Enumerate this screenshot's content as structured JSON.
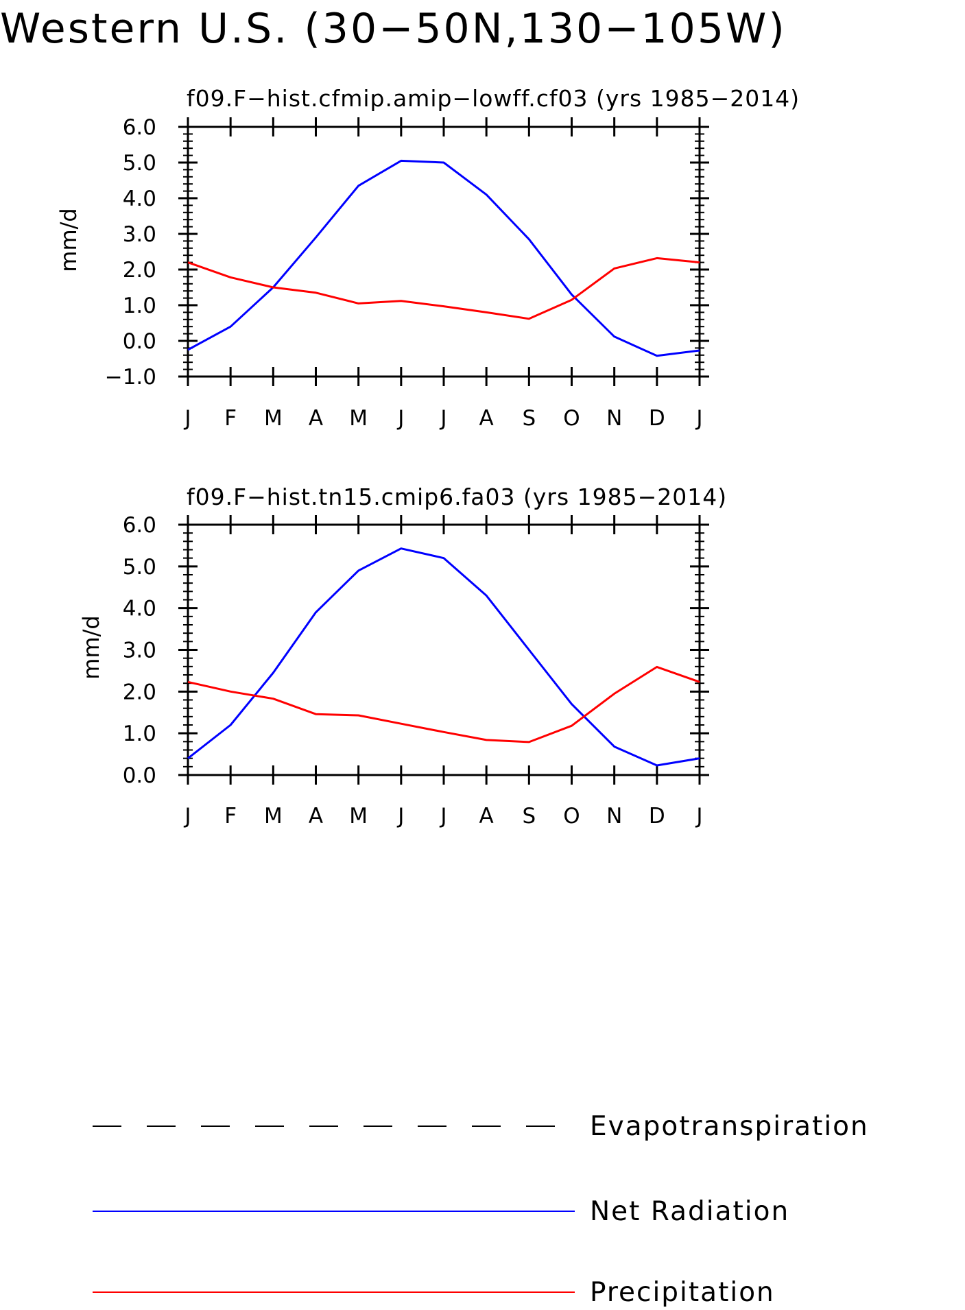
{
  "title": "Western U.S. (30−50N,130−105W)",
  "chart_data": [
    {
      "type": "line",
      "title": "f09.F−hist.cfmip.amip−lowff.cf03 (yrs 1985−2014)",
      "xlabel": "",
      "ylabel": "mm/d",
      "categories": [
        "J",
        "F",
        "M",
        "A",
        "M",
        "J",
        "J",
        "A",
        "S",
        "O",
        "N",
        "D",
        "J"
      ],
      "ylim": [
        -1.0,
        6.0
      ],
      "yticks": [
        "−1.0",
        "0.0",
        "1.0",
        "2.0",
        "3.0",
        "4.0",
        "5.0",
        "6.0"
      ],
      "grid": false,
      "series": [
        {
          "name": "Net Radiation",
          "color": "#0000ff",
          "values": [
            -0.25,
            0.4,
            1.5,
            2.9,
            4.35,
            5.05,
            5.0,
            4.1,
            2.85,
            1.3,
            0.12,
            -0.42,
            -0.27
          ]
        },
        {
          "name": "Precipitation",
          "color": "#ff0000",
          "values": [
            2.2,
            1.78,
            1.5,
            1.35,
            1.05,
            1.12,
            0.97,
            0.8,
            0.62,
            1.15,
            2.03,
            2.32,
            2.2
          ]
        }
      ]
    },
    {
      "type": "line",
      "title": "f09.F−hist.tn15.cmip6.fa03 (yrs 1985−2014)",
      "xlabel": "",
      "ylabel": "mm/d",
      "categories": [
        "J",
        "F",
        "M",
        "A",
        "M",
        "J",
        "J",
        "A",
        "S",
        "O",
        "N",
        "D",
        "J"
      ],
      "ylim": [
        0.0,
        6.0
      ],
      "yticks": [
        "0.0",
        "1.0",
        "2.0",
        "3.0",
        "4.0",
        "5.0",
        "6.0"
      ],
      "grid": false,
      "series": [
        {
          "name": "Net Radiation",
          "color": "#0000ff",
          "values": [
            0.4,
            1.2,
            2.45,
            3.9,
            4.9,
            5.43,
            5.2,
            4.3,
            3.0,
            1.7,
            0.68,
            0.23,
            0.4
          ]
        },
        {
          "name": "Precipitation",
          "color": "#ff0000",
          "values": [
            2.23,
            2.0,
            1.83,
            1.46,
            1.43,
            1.23,
            1.03,
            0.84,
            0.79,
            1.18,
            1.95,
            2.59,
            2.23
          ]
        }
      ]
    }
  ],
  "legend": [
    {
      "label": "Evapotranspiration",
      "color": "#000000",
      "style": "dashed"
    },
    {
      "label": "Net Radiation",
      "color": "#0000ff",
      "style": "solid"
    },
    {
      "label": "Precipitation",
      "color": "#ff0000",
      "style": "solid"
    }
  ]
}
